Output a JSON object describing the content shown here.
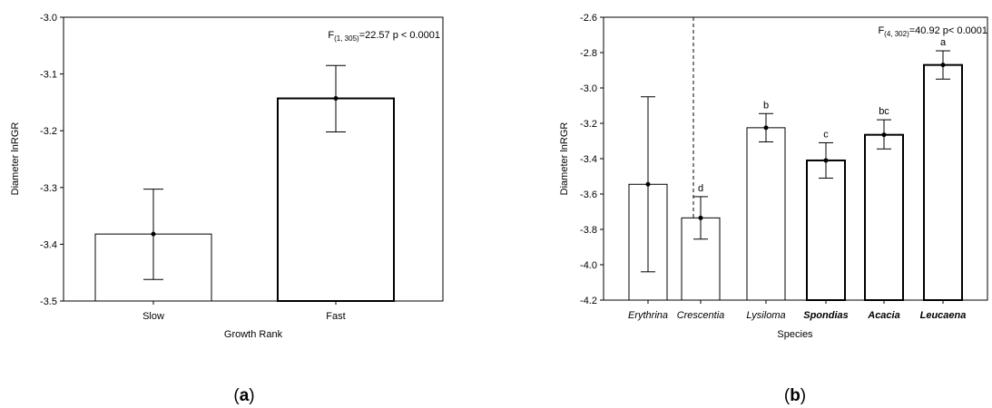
{
  "chart_data": [
    {
      "panel_label": "(a)",
      "panel_letter": "a",
      "type": "bar",
      "title": "",
      "xlabel": "Growth Rank",
      "ylabel": "Diameter lnRGR",
      "ylim": [
        -3.5,
        -3.0
      ],
      "yticks": [
        -3.5,
        -3.4,
        -3.3,
        -3.2,
        -3.1,
        -3.0
      ],
      "ytick_labels": [
        "-3.5",
        "-3.4",
        "-3.3",
        "-3.2",
        "-3.1",
        "-3.0"
      ],
      "categories": [
        "Slow",
        "Fast"
      ],
      "values": [
        -3.382,
        -3.143
      ],
      "err_low": [
        -3.462,
        -3.202
      ],
      "err_high": [
        -3.303,
        -3.085
      ],
      "bold_bars": [
        false,
        true
      ],
      "annotation": {
        "prefix": "F",
        "sub": "(1, 305)",
        "rest": "=22.57 p < 0.0001"
      },
      "grid": false,
      "legend": "none"
    },
    {
      "panel_label": "(b)",
      "panel_letter": "b",
      "type": "bar",
      "title": "",
      "xlabel": "Species",
      "ylabel": "Diameter lnRGR",
      "ylim": [
        -4.2,
        -2.6
      ],
      "yticks": [
        -4.2,
        -4.0,
        -3.8,
        -3.6,
        -3.4,
        -3.2,
        -3.0,
        -2.8,
        -2.6
      ],
      "ytick_labels": [
        "-4.2",
        "-4.0",
        "-3.8",
        "-3.6",
        "-3.4",
        "-3.2",
        "-3.0",
        "-2.8",
        "-2.6"
      ],
      "categories": [
        "Erythrina",
        "Crescentia",
        "Lysiloma",
        "Spondias",
        "Acacia",
        "Leucaena"
      ],
      "category_bold": [
        false,
        false,
        false,
        true,
        true,
        true
      ],
      "values": [
        -3.545,
        -3.735,
        -3.225,
        -3.41,
        -3.265,
        -2.87
      ],
      "err_low": [
        -4.04,
        -3.855,
        -3.305,
        -3.51,
        -3.345,
        -2.95
      ],
      "err_high": [
        -3.05,
        -3.615,
        -3.145,
        -3.31,
        -3.18,
        -2.79
      ],
      "bold_bars": [
        false,
        false,
        false,
        true,
        true,
        true
      ],
      "letters": [
        "",
        "d",
        "b",
        "c",
        "bc",
        "a"
      ],
      "annotation": {
        "prefix": "F",
        "sub": "(4, 302)",
        "rest": "=40.92 p< 0.0001"
      },
      "grid": false,
      "legend": "none"
    }
  ]
}
